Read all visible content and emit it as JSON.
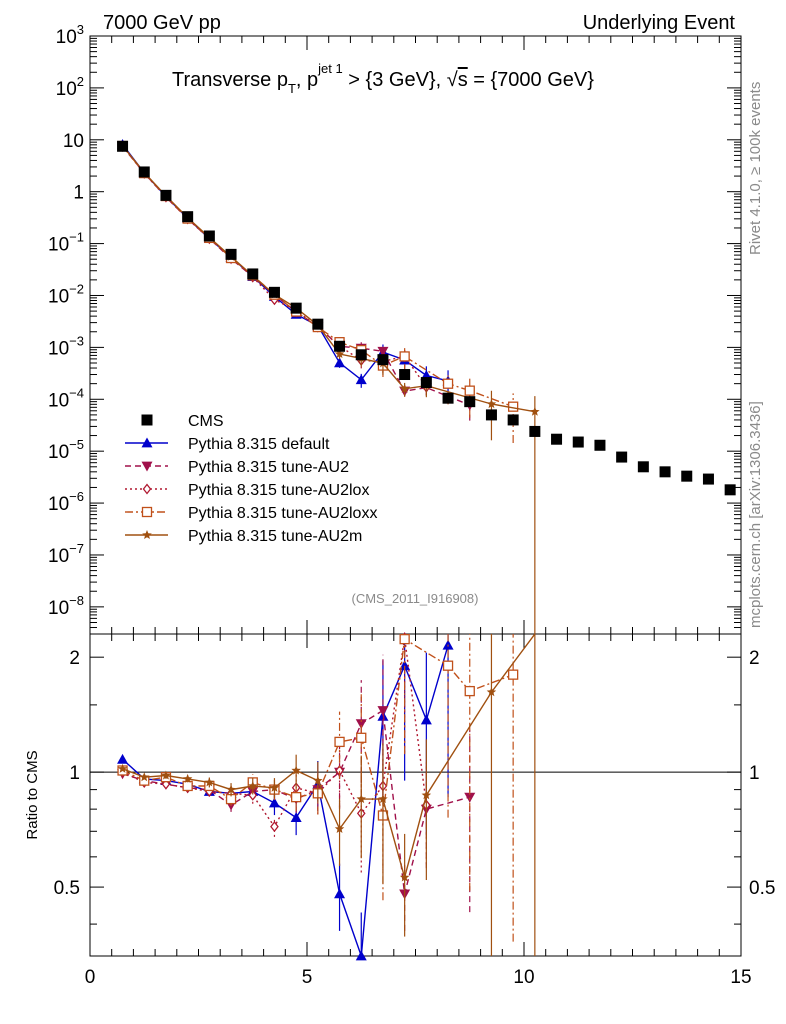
{
  "header": {
    "left": "7000 GeV pp",
    "right": "Underlying Event"
  },
  "side": {
    "rivet": "Rivet 4.1.0, ≥ 100k events",
    "mcplots": "mcplots.cern.ch [arXiv:1306.3436]"
  },
  "chart_data": {
    "type": "scatter",
    "title": "Transverse p_T, p_T^{jet 1} > {3 GeV}, √s = {7000 GeV}",
    "title_parts": {
      "a": "Transverse p",
      "sub_t": "T",
      "b": ", p",
      "sup_jet": "jet 1",
      "c": " > {3 GeV}, ",
      "sqrt": "√",
      "s": "s",
      "d": " = {7000 GeV}"
    },
    "analysis_id": "(CMS_2011_I916908)",
    "xlim": [
      0,
      15
    ],
    "ylim_main": [
      3e-09,
      1000
    ],
    "ylim_ratio": [
      0.33,
      2.3
    ],
    "ratio_ylabel": "Ratio to CMS",
    "x_ticks": [
      0,
      5,
      10,
      15
    ],
    "x_tick_labels": [
      "0",
      "5",
      "10",
      "15"
    ],
    "main_tick_labels": [
      "10^3",
      "10^2",
      "10",
      "1",
      "10^-1",
      "10^-2",
      "10^-3",
      "10^-4",
      "10^-5",
      "10^-6",
      "10^-7",
      "10^-8"
    ],
    "ratio_ticks": [
      0.5,
      1,
      2
    ],
    "ratio_tick_labels": [
      "0.5",
      "1",
      "2"
    ],
    "legend": [
      {
        "name": "CMS",
        "color": "#000000",
        "marker": "square",
        "style": "none"
      },
      {
        "name": "Pythia 8.315 default",
        "color": "#0000cc",
        "marker": "triangle-up",
        "style": "solid"
      },
      {
        "name": "Pythia 8.315 tune-AU2",
        "color": "#a0104a",
        "marker": "triangle-down",
        "style": "dashed"
      },
      {
        "name": "Pythia 8.315 tune-AU2lox",
        "color": "#b01830",
        "marker": "diamond-open",
        "style": "dotted"
      },
      {
        "name": "Pythia 8.315 tune-AU2loxx",
        "color": "#c0501a",
        "marker": "square-open",
        "style": "dashdot"
      },
      {
        "name": "Pythia 8.315 tune-AU2m",
        "color": "#a05010",
        "marker": "star",
        "style": "solid"
      }
    ],
    "cms": {
      "x": [
        0.75,
        1.25,
        1.75,
        2.25,
        2.75,
        3.25,
        3.75,
        4.25,
        4.75,
        5.25,
        5.75,
        6.25,
        6.75,
        7.25,
        7.75,
        8.25,
        8.75,
        9.25,
        9.75,
        10.25,
        10.75,
        11.25,
        11.75,
        12.25,
        12.75,
        13.25,
        13.75,
        14.25,
        14.75
      ],
      "y": [
        7.5,
        2.4,
        0.85,
        0.33,
        0.14,
        0.062,
        0.026,
        0.0115,
        0.0057,
        0.0028,
        0.00105,
        0.00072,
        0.00058,
        0.0003,
        0.00021,
        0.000105,
        9e-05,
        5e-05,
        4e-05,
        2.4e-05,
        1.7e-05,
        1.5e-05,
        1.3e-05,
        7.7e-06,
        5e-06,
        4e-06,
        3.3e-06,
        2.9e-06,
        1.8e-06
      ]
    },
    "series": [
      {
        "name": "Pythia 8.315 default",
        "x": [
          0.75,
          1.25,
          1.75,
          2.25,
          2.75,
          3.25,
          3.75,
          4.25,
          4.75,
          5.25,
          5.75,
          6.25,
          6.75,
          7.25,
          7.75,
          8.25
        ],
        "ratio": [
          1.08,
          0.96,
          0.95,
          0.93,
          0.89,
          0.88,
          0.89,
          0.83,
          0.76,
          0.93,
          0.48,
          0.33,
          1.4,
          1.9,
          1.37,
          2.15
        ],
        "err": [
          0.01,
          0.01,
          0.01,
          0.02,
          0.03,
          0.04,
          0.05,
          0.07,
          0.1,
          0.15,
          0.2,
          0.3,
          0.4,
          0.5,
          0.5,
          0.6
        ]
      },
      {
        "name": "Pythia 8.315 tune-AU2",
        "x": [
          0.75,
          1.25,
          1.75,
          2.25,
          2.75,
          3.25,
          3.75,
          4.25,
          4.75,
          5.25,
          5.75,
          6.25,
          6.75,
          7.25,
          7.75,
          8.75
        ],
        "ratio": [
          0.99,
          0.95,
          0.93,
          0.91,
          0.9,
          0.82,
          0.89,
          0.9,
          0.85,
          0.9,
          1.0,
          1.34,
          1.45,
          0.48,
          0.8,
          0.86
        ],
        "err": [
          0.01,
          0.01,
          0.02,
          0.02,
          0.03,
          0.04,
          0.05,
          0.06,
          0.08,
          0.12,
          0.2,
          0.3,
          0.4,
          0.2,
          0.3,
          0.5
        ]
      },
      {
        "name": "Pythia 8.315 tune-AU2lox",
        "x": [
          0.75,
          1.25,
          1.75,
          2.25,
          2.75,
          3.25,
          3.75,
          4.25,
          4.75,
          5.25,
          5.75,
          6.25,
          6.75,
          7.25,
          7.75
        ],
        "ratio": [
          1.0,
          0.94,
          0.93,
          0.91,
          0.89,
          0.88,
          0.87,
          0.72,
          0.91,
          0.88,
          1.01,
          0.78,
          0.92,
          2.25,
          0.82
        ],
        "err": [
          0.01,
          0.01,
          0.02,
          0.02,
          0.03,
          0.04,
          0.05,
          0.06,
          0.08,
          0.12,
          0.2,
          0.3,
          0.4,
          0.5,
          0.3
        ]
      },
      {
        "name": "Pythia 8.315 tune-AU2loxx",
        "x": [
          0.75,
          1.25,
          1.75,
          2.25,
          2.75,
          3.25,
          3.75,
          4.25,
          4.75,
          5.25,
          5.75,
          6.25,
          6.75,
          7.25,
          8.25,
          8.75,
          9.75
        ],
        "ratio": [
          1.01,
          0.95,
          0.97,
          0.92,
          0.92,
          0.85,
          0.94,
          0.9,
          0.86,
          0.88,
          1.2,
          1.23,
          0.77,
          2.23,
          1.9,
          1.63,
          1.8
        ],
        "err": [
          0.01,
          0.01,
          0.02,
          0.02,
          0.03,
          0.04,
          0.05,
          0.06,
          0.08,
          0.12,
          0.2,
          0.3,
          0.4,
          0.5,
          0.6,
          0.7,
          0.8
        ]
      },
      {
        "name": "Pythia 8.315 tune-AU2m",
        "x": [
          0.75,
          1.25,
          1.75,
          2.25,
          2.75,
          3.25,
          3.75,
          4.25,
          4.75,
          5.25,
          5.75,
          6.25,
          6.75,
          7.25,
          7.75,
          9.25,
          10.25
        ],
        "ratio": [
          1.02,
          0.97,
          0.98,
          0.96,
          0.94,
          0.9,
          0.92,
          0.91,
          1.01,
          0.95,
          0.71,
          0.85,
          0.85,
          0.53,
          0.87,
          1.62,
          2.4
        ],
        "err": [
          0.01,
          0.01,
          0.02,
          0.02,
          0.03,
          0.04,
          0.05,
          0.06,
          0.1,
          0.12,
          0.2,
          0.3,
          0.4,
          0.3,
          0.4,
          0.8,
          1.0
        ]
      }
    ]
  }
}
